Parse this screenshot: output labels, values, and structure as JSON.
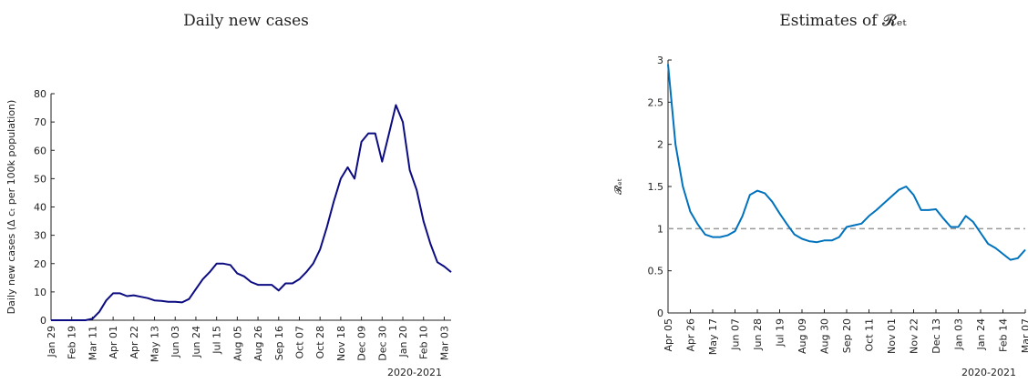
{
  "chart_data": [
    {
      "type": "line",
      "title": "Daily new cases",
      "y_label": "Daily new cases (Δ cₜ per 100k population)",
      "x_label": "2020-2021",
      "categories": [
        "Jan 29",
        null,
        null,
        "Feb 19",
        null,
        null,
        "Mar 11",
        null,
        null,
        "Apr 01",
        null,
        null,
        "Apr 22",
        null,
        null,
        "May 13",
        null,
        null,
        "Jun 03",
        null,
        null,
        "Jun 24",
        null,
        null,
        "Jul 15",
        null,
        null,
        "Aug 05",
        null,
        null,
        "Aug 26",
        null,
        null,
        "Sep 16",
        null,
        null,
        "Oct 07",
        null,
        null,
        "Oct 28",
        null,
        null,
        "Nov 18",
        null,
        null,
        "Dec 09",
        null,
        null,
        "Dec 30",
        null,
        null,
        "Jan 20",
        null,
        null,
        "Feb 10",
        null,
        null,
        "Mar 03",
        null
      ],
      "series": [
        {
          "color": "#0c0c82",
          "values": [
            0,
            0,
            0,
            0,
            0,
            0,
            0.5,
            3,
            7,
            9.5,
            9.5,
            8.5,
            8.8,
            8.3,
            7.8,
            7,
            6.8,
            6.5,
            6.5,
            6.3,
            7.5,
            11,
            14.5,
            17,
            20,
            20,
            19.5,
            16.5,
            15.5,
            13.5,
            12.5,
            12.5,
            12.5,
            10.5,
            13,
            13,
            14.5,
            17,
            20,
            25,
            33,
            42,
            50,
            54,
            50,
            63,
            66,
            66,
            56,
            66,
            76,
            70,
            53,
            46,
            35,
            27,
            20.5,
            19,
            17
          ]
        }
      ],
      "ylim": [
        0,
        80
      ],
      "yticks": [
        0,
        10,
        20,
        30,
        40,
        50,
        60,
        70,
        80
      ]
    },
    {
      "type": "line",
      "title": "Estimates of 𝓡ₑₜ",
      "y_label": "𝓡̂ₑₜ",
      "x_label": "2020-2021",
      "categories": [
        "Apr 05",
        null,
        null,
        "Apr 26",
        null,
        null,
        "May 17",
        null,
        null,
        "Jun 07",
        null,
        null,
        "Jun 28",
        null,
        null,
        "Jul 19",
        null,
        null,
        "Aug 09",
        null,
        null,
        "Aug 30",
        null,
        null,
        "Sep 20",
        null,
        null,
        "Oct 11",
        null,
        null,
        "Nov 01",
        null,
        null,
        "Nov 22",
        null,
        null,
        "Dec 13",
        null,
        null,
        "Jan 03",
        null,
        null,
        "Jan 24",
        null,
        null,
        "Feb 14",
        null,
        null,
        "Mar 07"
      ],
      "series": [
        {
          "color": "#0072bd",
          "values": [
            2.95,
            2.0,
            1.5,
            1.2,
            1.05,
            0.93,
            0.9,
            0.9,
            0.92,
            0.97,
            1.15,
            1.4,
            1.45,
            1.42,
            1.32,
            1.18,
            1.05,
            0.93,
            0.88,
            0.85,
            0.84,
            0.86,
            0.86,
            0.9,
            1.02,
            1.04,
            1.06,
            1.15,
            1.22,
            1.3,
            1.38,
            1.46,
            1.5,
            1.4,
            1.22,
            1.22,
            1.23,
            1.12,
            1.02,
            1.02,
            1.15,
            1.08,
            0.95,
            0.82,
            0.77,
            0.7,
            0.63,
            0.65,
            0.75
          ]
        }
      ],
      "ylim": [
        0,
        3
      ],
      "yticks": [
        0,
        {
          "value": 0.5,
          "label": "0.5"
        },
        1,
        {
          "value": 1.5,
          "label": "1.5"
        },
        2,
        {
          "value": 2.5,
          "label": "2.5"
        },
        3
      ],
      "reference_line": 1
    }
  ]
}
